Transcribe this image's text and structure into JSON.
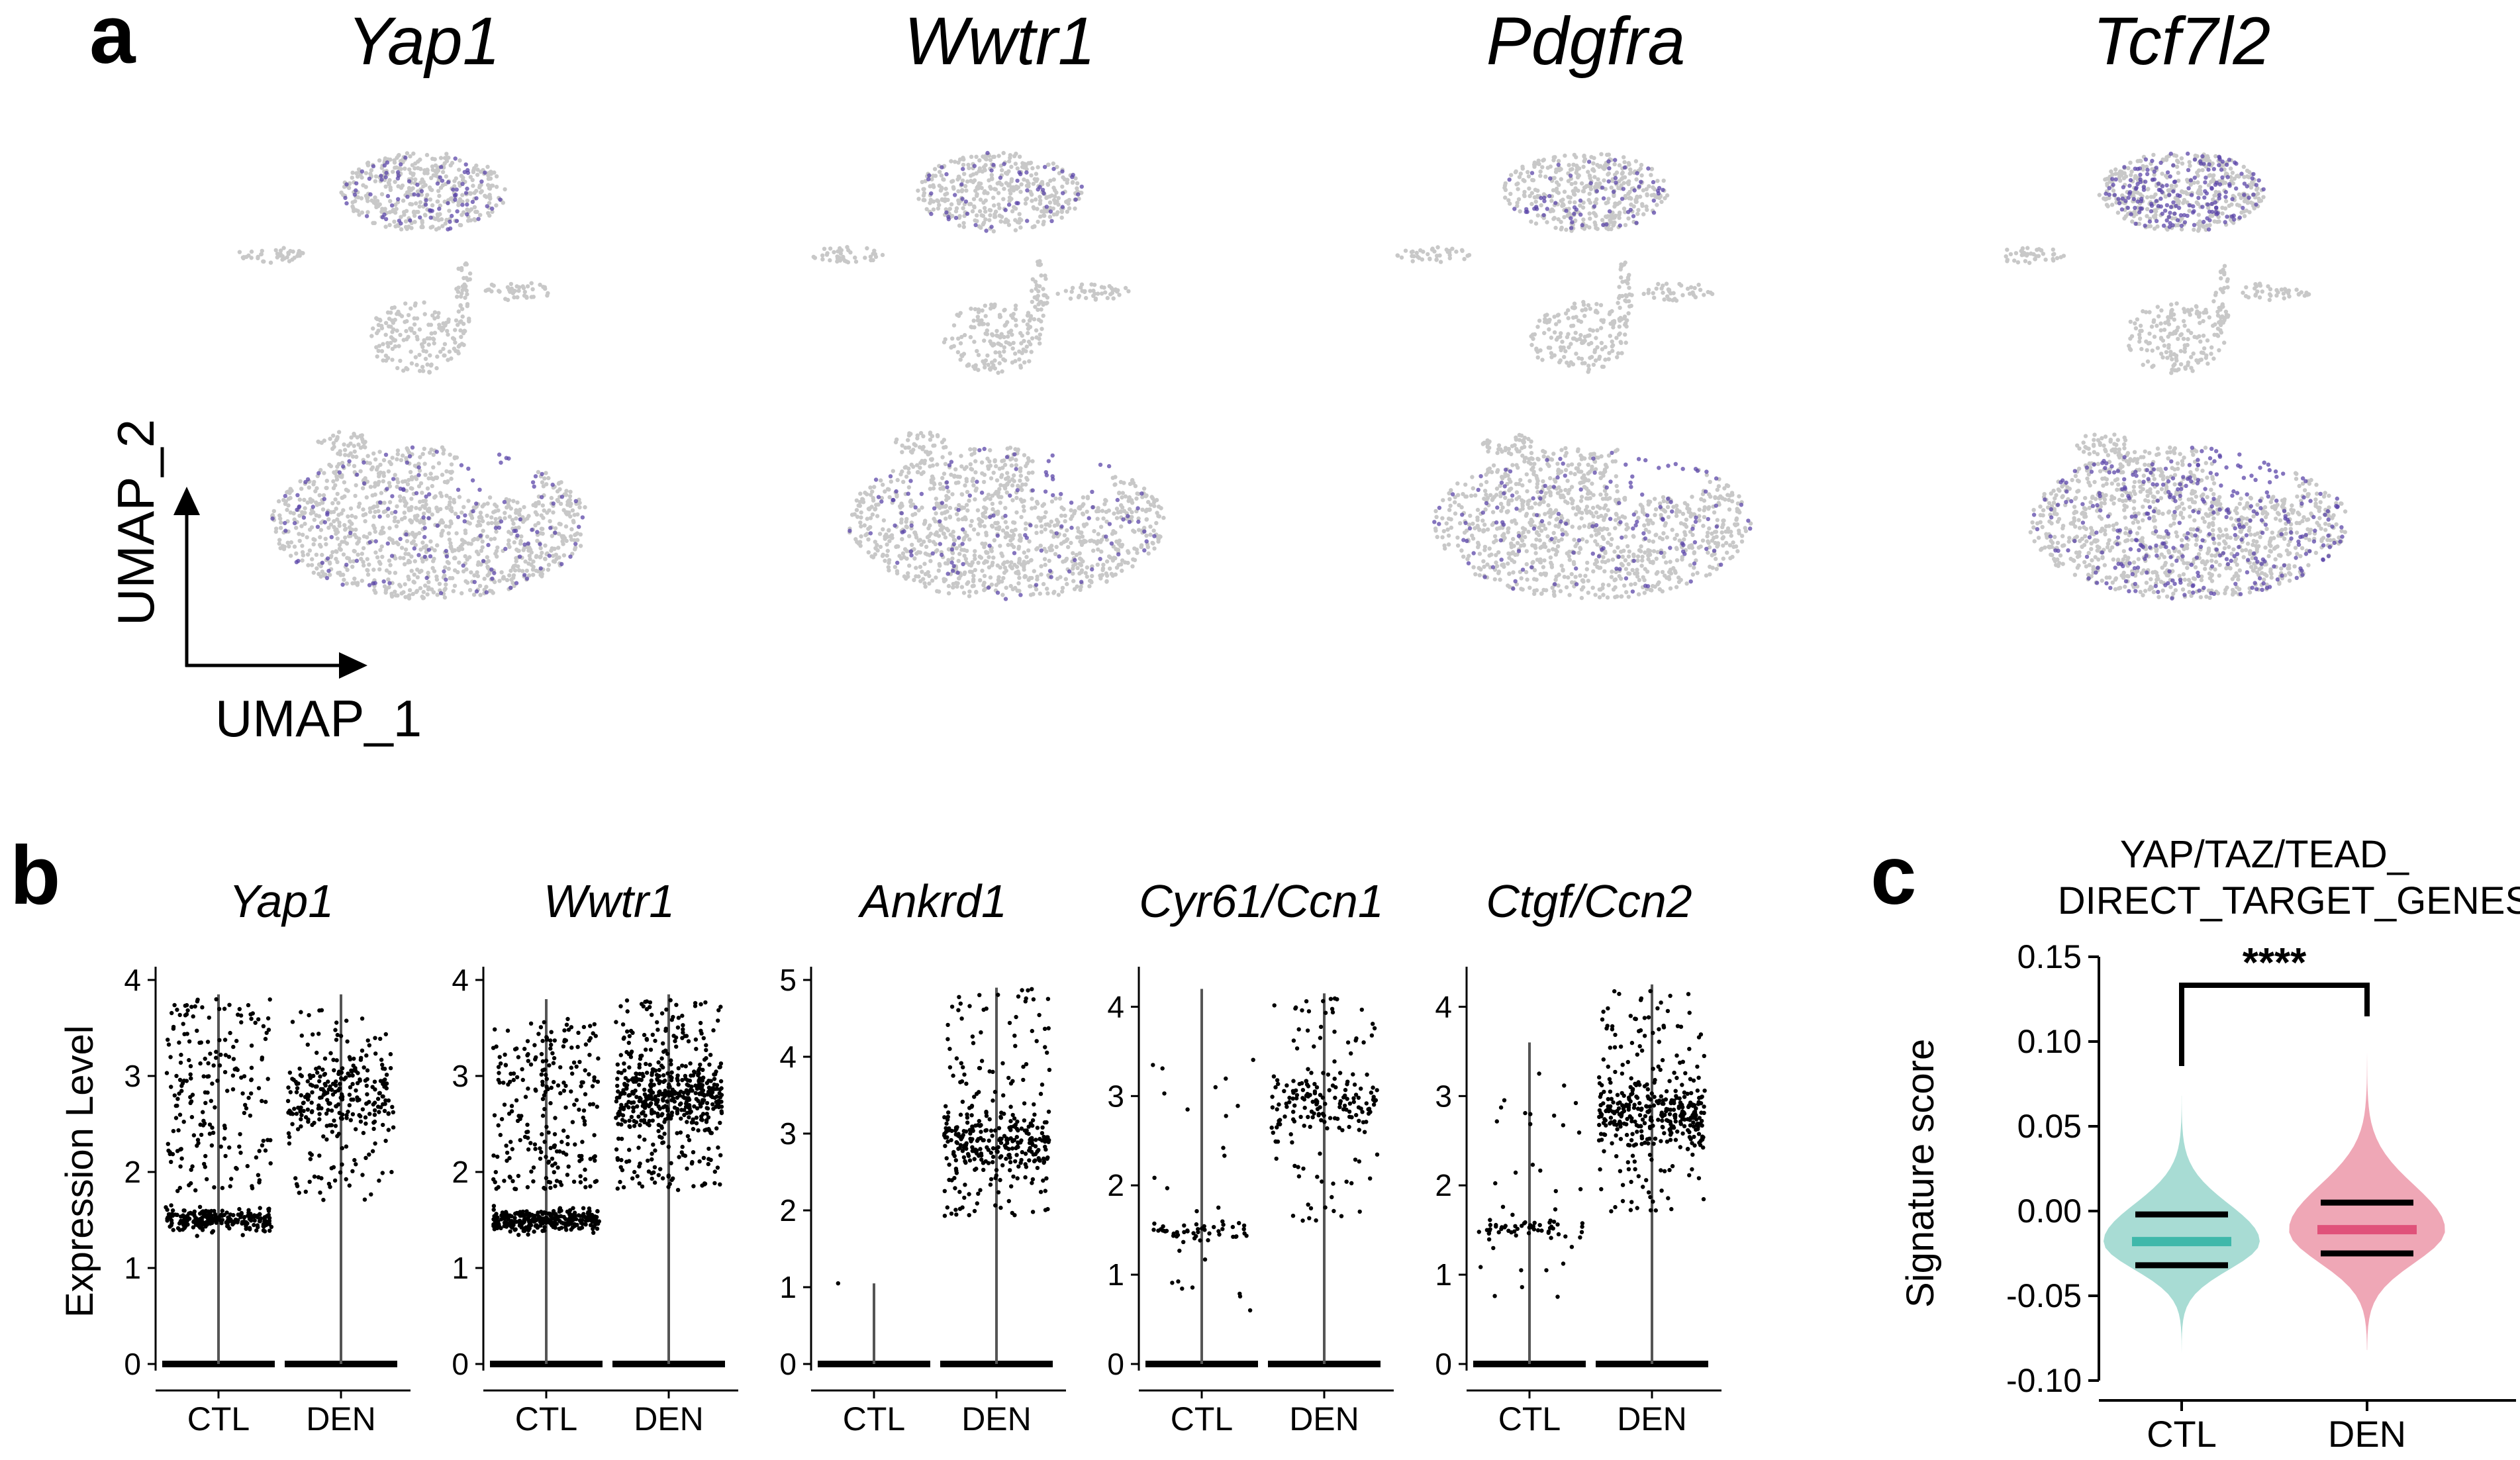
{
  "panel_labels": {
    "a": "a",
    "b": "b",
    "c": "c"
  },
  "colors": {
    "umap_background": "#c8c8c8",
    "umap_expression": "#5b45a8",
    "violin_points": "#000000",
    "ctl_fill": "#a8dcd4",
    "ctl_median": "#3fb8aa",
    "den_fill": "#efa7b6",
    "den_median": "#e0527a"
  },
  "chart_data": [
    {
      "type": "scatter",
      "panel": "a",
      "description_type": "umap_feature_plots",
      "xlabel": "UMAP_1",
      "ylabel": "UMAP_2",
      "genes": [
        {
          "name": "Yap1",
          "expression_level": 0.25
        },
        {
          "name": "Wwtr1",
          "expression_level": 0.18
        },
        {
          "name": "Pdgfra",
          "expression_level": 0.22
        },
        {
          "name": "Tcf7l2",
          "expression_level": 0.55
        }
      ]
    },
    {
      "type": "scatter",
      "panel": "b",
      "description_type": "violin_jitter",
      "ylabel": "Expression Level",
      "categories": [
        "CTL",
        "DEN"
      ],
      "plots": [
        {
          "gene": "Yap1",
          "ylim": [
            0,
            4
          ],
          "yticks": [
            "0",
            "1",
            "2",
            "3",
            "4"
          ],
          "series": [
            {
              "name": "CTL",
              "max": 3.85,
              "zero_fraction": "dominant",
              "cluster_center": 1.5,
              "upper_spread": [
                1.8,
                3.8
              ],
              "n_points": 420
            },
            {
              "name": "DEN",
              "max": 3.85,
              "zero_fraction": "dominant",
              "cluster_center": 2.8,
              "upper_spread": [
                1.7,
                3.7
              ],
              "n_points": 300
            }
          ]
        },
        {
          "gene": "Wwtr1",
          "ylim": [
            0,
            4
          ],
          "yticks": [
            "0",
            "1",
            "2",
            "3",
            "4"
          ],
          "series": [
            {
              "name": "CTL",
              "max": 3.8,
              "zero_fraction": "dominant",
              "cluster_center": 1.5,
              "upper_spread": [
                1.8,
                3.6
              ],
              "n_points": 520
            },
            {
              "name": "DEN",
              "max": 3.85,
              "zero_fraction": "dominant",
              "cluster_center": 2.8,
              "upper_spread": [
                1.8,
                3.8
              ],
              "n_points": 560
            }
          ]
        },
        {
          "gene": "Ankrd1",
          "ylim": [
            0,
            5
          ],
          "yticks": [
            "0",
            "1",
            "2",
            "3",
            "4",
            "5"
          ],
          "series": [
            {
              "name": "CTL",
              "max": 1.05,
              "zero_fraction": "dominant",
              "cluster_center": 0,
              "upper_spread": [
                1.05,
                1.05
              ],
              "n_points": 1
            },
            {
              "name": "DEN",
              "max": 4.9,
              "zero_fraction": "dominant",
              "cluster_center": 2.9,
              "upper_spread": [
                1.9,
                4.9
              ],
              "n_points": 360
            }
          ]
        },
        {
          "gene": "Cyr61/Ccn1",
          "ylim": [
            0,
            4.3
          ],
          "yticks": [
            "0",
            "1",
            "2",
            "3",
            "4"
          ],
          "series": [
            {
              "name": "CTL",
              "max": 4.2,
              "zero_fraction": "dominant",
              "cluster_center": 1.5,
              "upper_spread": [
                0.5,
                3.5
              ],
              "n_points": 70
            },
            {
              "name": "DEN",
              "max": 4.15,
              "zero_fraction": "dominant",
              "cluster_center": 2.9,
              "upper_spread": [
                1.6,
                4.1
              ],
              "n_points": 200
            }
          ]
        },
        {
          "gene": "Ctgf/Ccn2",
          "ylim": [
            0,
            4.3
          ],
          "yticks": [
            "0",
            "1",
            "2",
            "3",
            "4"
          ],
          "series": [
            {
              "name": "CTL",
              "max": 3.6,
              "zero_fraction": "dominant",
              "cluster_center": 1.5,
              "upper_spread": [
                0.7,
                3.3
              ],
              "n_points": 80
            },
            {
              "name": "DEN",
              "max": 4.25,
              "zero_fraction": "dominant",
              "cluster_center": 2.8,
              "upper_spread": [
                1.7,
                4.2
              ],
              "n_points": 400
            }
          ]
        }
      ]
    },
    {
      "type": "area",
      "panel": "c",
      "description_type": "violin",
      "title_lines": [
        "YAP/TAZ/TEAD_",
        "DIRECT_TARGET_GENES"
      ],
      "ylabel": "Signature score",
      "ylim": [
        -0.1,
        0.15
      ],
      "yticks": [
        "0.15",
        "0.10",
        "0.05",
        "0.00",
        "-0.05",
        "-0.10"
      ],
      "ytick_values": [
        0.15,
        0.1,
        0.05,
        0.0,
        -0.05,
        -0.1
      ],
      "categories": [
        "CTL",
        "DEN"
      ],
      "series": [
        {
          "name": "CTL",
          "min": -0.088,
          "max": 0.068,
          "q1": -0.032,
          "median": -0.018,
          "q3": -0.002
        },
        {
          "name": "DEN",
          "min": -0.082,
          "max": 0.103,
          "q1": -0.025,
          "median": -0.011,
          "q3": 0.005
        }
      ],
      "significance": "****"
    }
  ]
}
